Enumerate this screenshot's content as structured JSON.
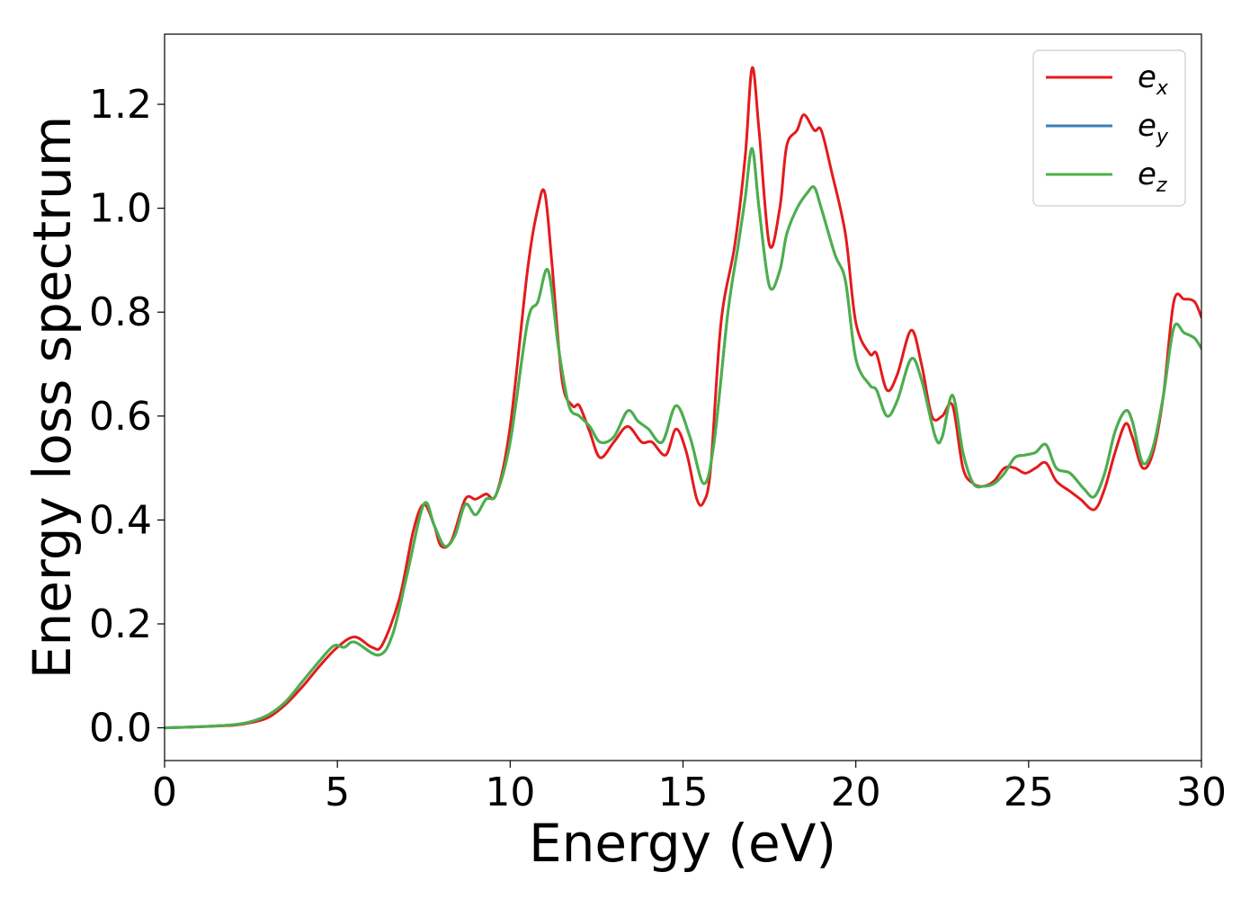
{
  "chart_data": {
    "type": "line",
    "title": "",
    "xlabel": "Energy (eV)",
    "ylabel": "Energy loss spectrum",
    "xlim": [
      0,
      30
    ],
    "ylim": [
      -0.063,
      1.335
    ],
    "xticks": [
      0,
      5,
      10,
      15,
      20,
      25,
      30
    ],
    "xtick_labels": [
      "0",
      "5",
      "10",
      "15",
      "20",
      "25",
      "30"
    ],
    "yticks": [
      0.0,
      0.2,
      0.4,
      0.6,
      0.8,
      1.0,
      1.2
    ],
    "ytick_labels": [
      "0.0",
      "0.2",
      "0.4",
      "0.6",
      "0.8",
      "1.0",
      "1.2"
    ],
    "grid": false,
    "legend_position": "top-right",
    "series": [
      {
        "name": "e_x",
        "legend_base": "e",
        "legend_sub": "x",
        "color": "#e41a1c",
        "x": [
          0,
          1,
          2,
          2.5,
          3,
          3.5,
          4,
          4.5,
          5,
          5.5,
          6,
          6.3,
          6.8,
          7.2,
          7.5,
          7.8,
          8.0,
          8.3,
          8.7,
          9.0,
          9.3,
          9.6,
          10.0,
          10.5,
          10.8,
          11.0,
          11.2,
          11.5,
          11.8,
          12.0,
          12.3,
          12.6,
          13.0,
          13.4,
          13.8,
          14.1,
          14.5,
          14.8,
          15.1,
          15.4,
          15.6,
          15.8,
          16.1,
          16.5,
          16.8,
          17.0,
          17.2,
          17.5,
          17.8,
          18.0,
          18.3,
          18.5,
          18.8,
          19.0,
          19.3,
          19.7,
          20.0,
          20.4,
          20.6,
          20.9,
          21.2,
          21.6,
          21.9,
          22.2,
          22.5,
          22.8,
          23.1,
          23.4,
          23.7,
          24.0,
          24.3,
          24.6,
          24.9,
          25.2,
          25.5,
          25.8,
          26.2,
          26.5,
          26.9,
          27.2,
          27.5,
          27.8,
          28.0,
          28.3,
          28.6,
          28.9,
          29.2,
          29.5,
          29.8,
          30.0
        ],
        "y": [
          0.0,
          0.002,
          0.005,
          0.01,
          0.02,
          0.045,
          0.08,
          0.12,
          0.155,
          0.175,
          0.155,
          0.16,
          0.25,
          0.38,
          0.43,
          0.39,
          0.35,
          0.36,
          0.44,
          0.44,
          0.45,
          0.45,
          0.58,
          0.88,
          1.0,
          1.03,
          0.9,
          0.67,
          0.62,
          0.62,
          0.57,
          0.52,
          0.55,
          0.58,
          0.55,
          0.55,
          0.525,
          0.575,
          0.53,
          0.44,
          0.435,
          0.5,
          0.78,
          0.93,
          1.1,
          1.27,
          1.15,
          0.93,
          1.0,
          1.12,
          1.15,
          1.18,
          1.15,
          1.15,
          1.07,
          0.95,
          0.78,
          0.72,
          0.72,
          0.65,
          0.68,
          0.765,
          0.7,
          0.6,
          0.6,
          0.62,
          0.5,
          0.47,
          0.465,
          0.475,
          0.5,
          0.5,
          0.49,
          0.5,
          0.51,
          0.475,
          0.455,
          0.44,
          0.42,
          0.46,
          0.53,
          0.585,
          0.56,
          0.5,
          0.53,
          0.64,
          0.82,
          0.825,
          0.82,
          0.79
        ]
      },
      {
        "name": "e_y",
        "legend_base": "e",
        "legend_sub": "y",
        "color": "#377eb8",
        "x": [
          0,
          1,
          2,
          2.5,
          3,
          3.5,
          4,
          4.5,
          4.9,
          5.2,
          5.5,
          6.2,
          6.6,
          7.0,
          7.5,
          7.8,
          8.1,
          8.4,
          8.7,
          9.0,
          9.3,
          9.6,
          10.0,
          10.5,
          10.8,
          11.1,
          11.4,
          11.7,
          12.0,
          12.3,
          12.6,
          13.0,
          13.4,
          13.7,
          14.0,
          14.4,
          14.8,
          15.2,
          15.6,
          15.9,
          16.3,
          16.6,
          16.8,
          17.0,
          17.2,
          17.5,
          17.8,
          18.0,
          18.3,
          18.6,
          18.8,
          19.0,
          19.4,
          19.7,
          20.0,
          20.4,
          20.6,
          20.9,
          21.2,
          21.6,
          21.9,
          22.3,
          22.5,
          22.8,
          23.1,
          23.4,
          23.7,
          24.0,
          24.3,
          24.6,
          24.9,
          25.2,
          25.5,
          25.8,
          26.2,
          26.6,
          26.9,
          27.2,
          27.5,
          27.8,
          28.0,
          28.3,
          28.6,
          28.9,
          29.2,
          29.5,
          29.8,
          30.0
        ],
        "y": [
          0.0,
          0.002,
          0.006,
          0.012,
          0.025,
          0.05,
          0.09,
          0.13,
          0.158,
          0.155,
          0.165,
          0.14,
          0.18,
          0.29,
          0.43,
          0.39,
          0.35,
          0.37,
          0.43,
          0.41,
          0.44,
          0.45,
          0.55,
          0.78,
          0.82,
          0.88,
          0.73,
          0.62,
          0.6,
          0.58,
          0.55,
          0.56,
          0.61,
          0.59,
          0.575,
          0.55,
          0.62,
          0.56,
          0.47,
          0.55,
          0.8,
          0.93,
          1.02,
          1.115,
          1.0,
          0.85,
          0.88,
          0.95,
          1.0,
          1.03,
          1.04,
          1.0,
          0.91,
          0.86,
          0.71,
          0.66,
          0.65,
          0.6,
          0.63,
          0.71,
          0.67,
          0.56,
          0.56,
          0.64,
          0.53,
          0.47,
          0.465,
          0.47,
          0.49,
          0.52,
          0.525,
          0.53,
          0.545,
          0.5,
          0.49,
          0.46,
          0.445,
          0.49,
          0.57,
          0.61,
          0.59,
          0.51,
          0.54,
          0.64,
          0.77,
          0.76,
          0.75,
          0.73
        ]
      },
      {
        "name": "e_z",
        "legend_base": "e",
        "legend_sub": "z",
        "color": "#4daf4a",
        "x": [
          0,
          1,
          2,
          2.5,
          3,
          3.5,
          4,
          4.5,
          4.9,
          5.2,
          5.5,
          6.2,
          6.6,
          7.0,
          7.5,
          7.8,
          8.1,
          8.4,
          8.7,
          9.0,
          9.3,
          9.6,
          10.0,
          10.5,
          10.8,
          11.1,
          11.4,
          11.7,
          12.0,
          12.3,
          12.6,
          13.0,
          13.4,
          13.7,
          14.0,
          14.4,
          14.8,
          15.2,
          15.6,
          15.9,
          16.3,
          16.6,
          16.8,
          17.0,
          17.2,
          17.5,
          17.8,
          18.0,
          18.3,
          18.6,
          18.8,
          19.0,
          19.4,
          19.7,
          20.0,
          20.4,
          20.6,
          20.9,
          21.2,
          21.6,
          21.9,
          22.3,
          22.5,
          22.8,
          23.1,
          23.4,
          23.7,
          24.0,
          24.3,
          24.6,
          24.9,
          25.2,
          25.5,
          25.8,
          26.2,
          26.6,
          26.9,
          27.2,
          27.5,
          27.8,
          28.0,
          28.3,
          28.6,
          28.9,
          29.2,
          29.5,
          29.8,
          30.0
        ],
        "y": [
          0.0,
          0.002,
          0.006,
          0.012,
          0.025,
          0.05,
          0.09,
          0.13,
          0.158,
          0.155,
          0.165,
          0.14,
          0.18,
          0.29,
          0.43,
          0.39,
          0.35,
          0.37,
          0.43,
          0.41,
          0.44,
          0.45,
          0.55,
          0.78,
          0.82,
          0.88,
          0.73,
          0.62,
          0.6,
          0.58,
          0.55,
          0.56,
          0.61,
          0.59,
          0.575,
          0.55,
          0.62,
          0.56,
          0.47,
          0.55,
          0.8,
          0.93,
          1.02,
          1.115,
          1.0,
          0.85,
          0.88,
          0.95,
          1.0,
          1.03,
          1.04,
          1.0,
          0.91,
          0.86,
          0.71,
          0.66,
          0.65,
          0.6,
          0.63,
          0.71,
          0.67,
          0.56,
          0.56,
          0.64,
          0.53,
          0.47,
          0.465,
          0.47,
          0.49,
          0.52,
          0.525,
          0.53,
          0.545,
          0.5,
          0.49,
          0.46,
          0.445,
          0.49,
          0.57,
          0.61,
          0.59,
          0.51,
          0.54,
          0.64,
          0.77,
          0.76,
          0.75,
          0.73
        ]
      }
    ]
  }
}
